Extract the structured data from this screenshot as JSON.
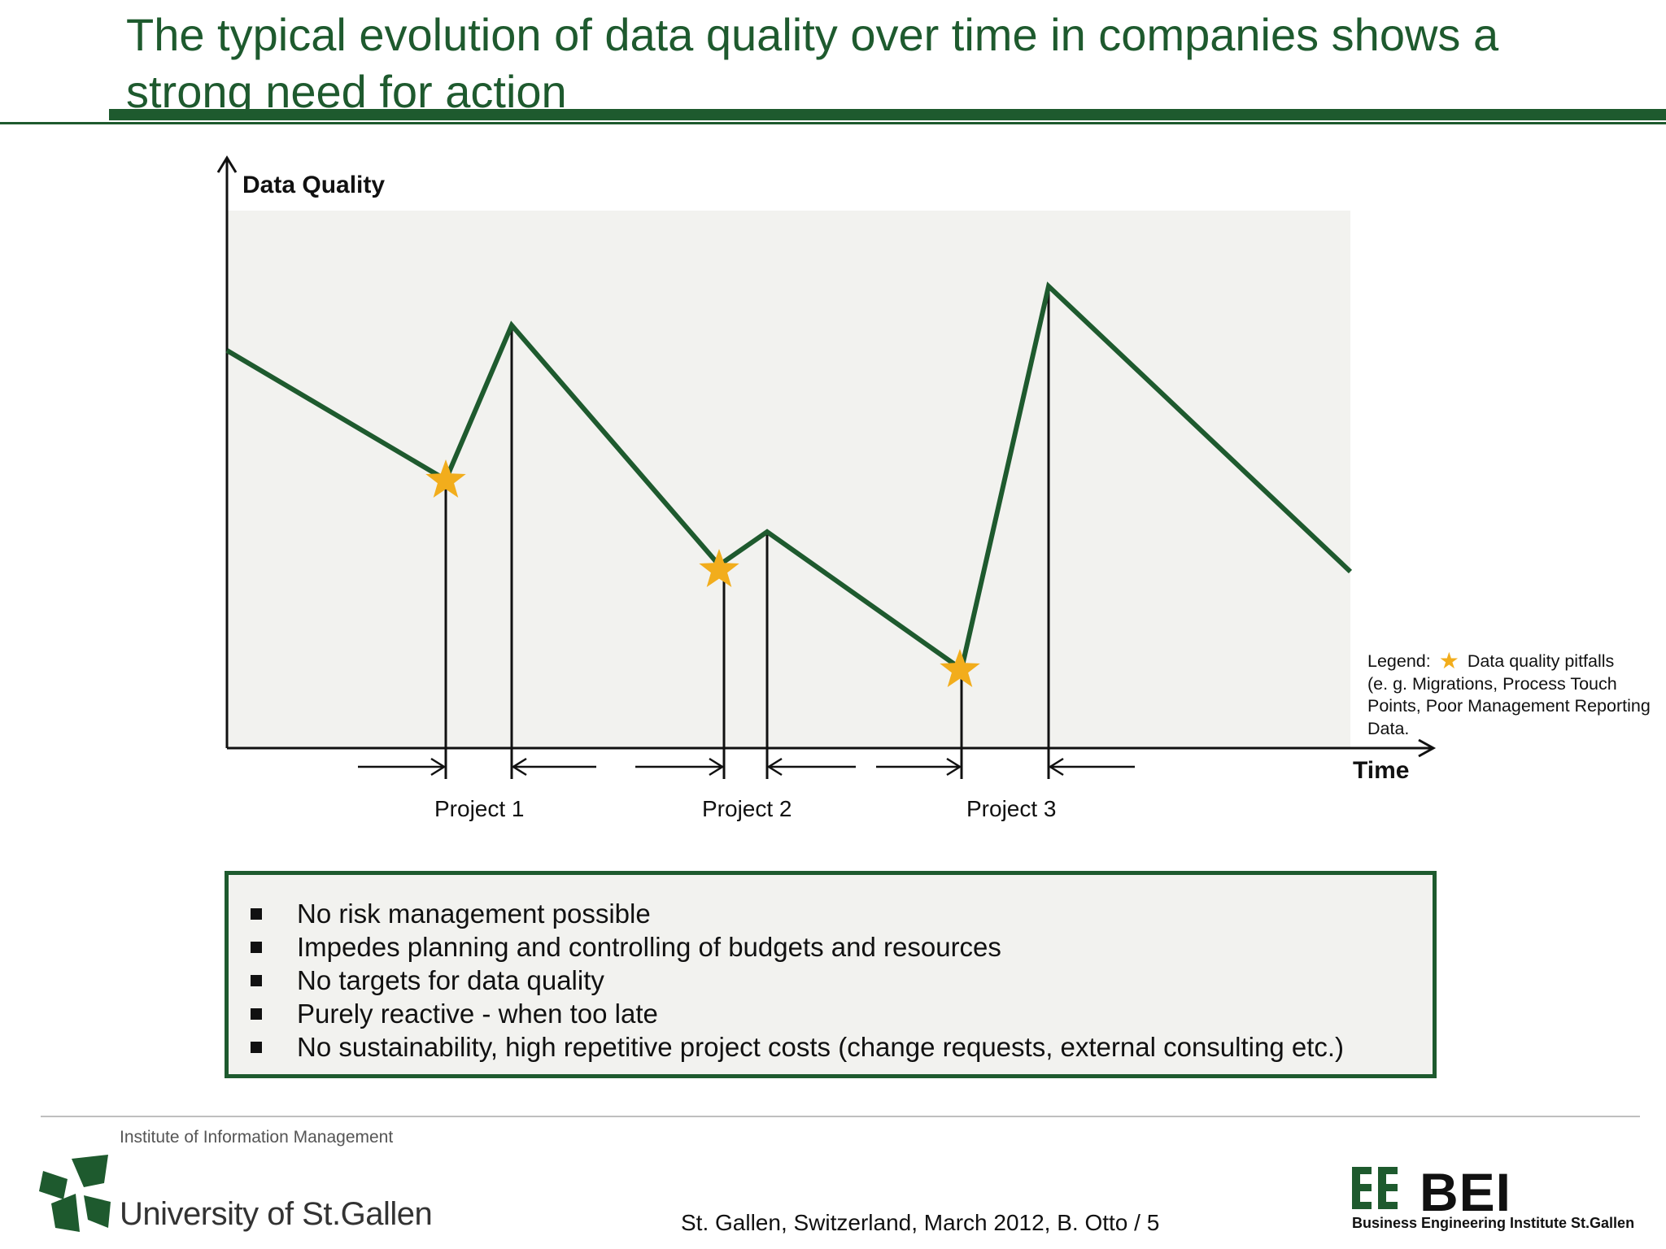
{
  "slide": {
    "title_lines": [
      "The typical evolution of data quality over time in companies shows a",
      "strong need for action"
    ]
  },
  "diagram": {
    "y_axis_label": "Data Quality",
    "x_axis_label": "Time",
    "projects": [
      "Project 1",
      "Project 2",
      "Project 3"
    ],
    "legend": {
      "lead": "Legend:",
      "item": "Data quality pitfalls",
      "description": "(e. g.  Migrations, Process Touch Points, Poor Management Reporting Data."
    },
    "colors": {
      "curve": "#1e5a2e",
      "pitfall_star": "#f2ad1c",
      "plot_background": "#f2f2ef"
    }
  },
  "notes": [
    "No risk management possible",
    "Impedes planning and controlling of budgets and resources",
    "No targets for data quality",
    "Purely reactive - when too late",
    "No sustainability, high repetitive project costs (change requests, external consulting etc.)"
  ],
  "footer": {
    "institute": "Institute of Information Management",
    "university": "University of St.Gallen",
    "citation": "St. Gallen, Switzerland, March 2012, B. Otto / 5",
    "bei_short": "BEI",
    "bei_full": "Business Engineering Institute St.Gallen"
  }
}
